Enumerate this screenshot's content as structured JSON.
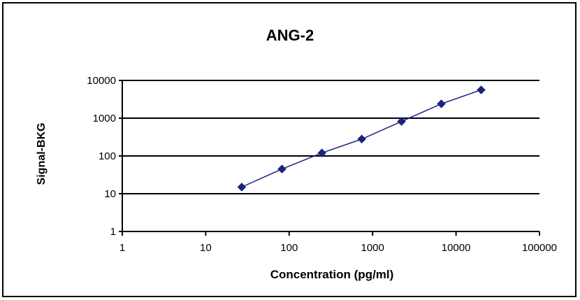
{
  "chart_data": {
    "type": "scatter",
    "title": "ANG-2",
    "xlabel": "Concentration (pg/ml)",
    "ylabel": "Signal-BKG",
    "x_scale": "log",
    "y_scale": "log",
    "xlim": [
      1,
      100000
    ],
    "ylim": [
      1,
      10000
    ],
    "x_ticks": [
      "1",
      "10",
      "100",
      "1000",
      "10000",
      "100000"
    ],
    "y_ticks": [
      "1",
      "10",
      "100",
      "1000",
      "10000"
    ],
    "grid": "horizontal",
    "legend": "none",
    "series": [
      {
        "marker": "diamond",
        "line": true,
        "color": "#1a237e",
        "x": [
          27,
          82,
          247,
          741,
          2222,
          6667,
          20000
        ],
        "y": [
          15,
          45,
          120,
          280,
          820,
          2400,
          5600
        ]
      }
    ]
  }
}
